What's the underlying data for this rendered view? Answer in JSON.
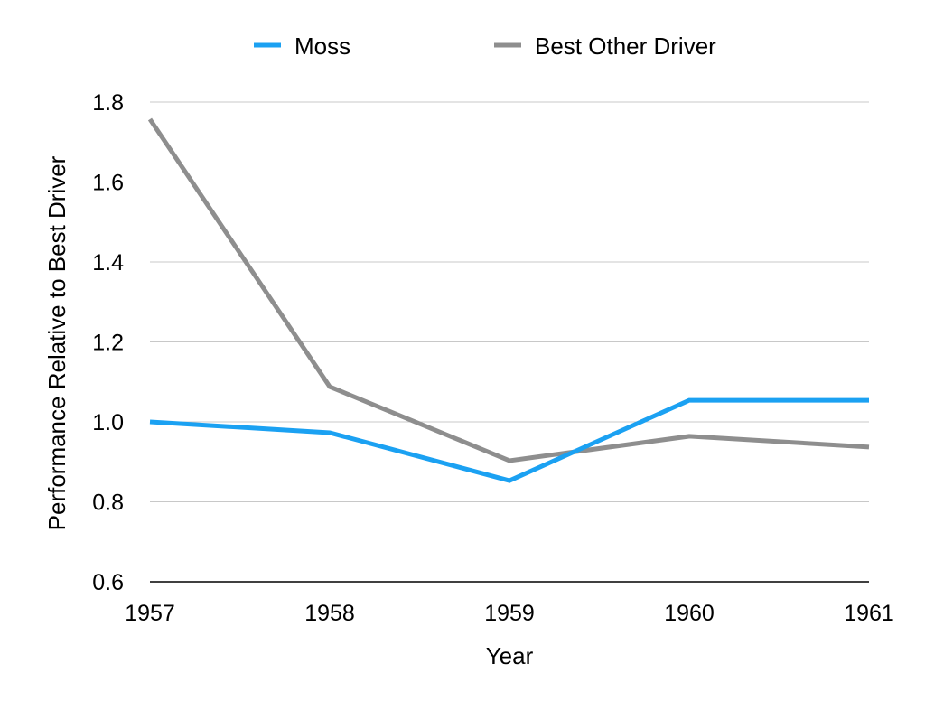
{
  "chart_data": {
    "type": "line",
    "title": "",
    "xlabel": "Year",
    "ylabel": "Performance Relative to Best Driver",
    "x": [
      "1957",
      "1958",
      "1959",
      "1960",
      "1961"
    ],
    "ylim": [
      0.6,
      1.8
    ],
    "yticks": [
      "0.6",
      "0.8",
      "1.0",
      "1.2",
      "1.4",
      "1.6",
      "1.8"
    ],
    "grid": true,
    "legend_position": "top",
    "series": [
      {
        "name": "Moss",
        "color": "#1BA1F2",
        "values": [
          1.0,
          0.973,
          0.853,
          1.054,
          1.054
        ]
      },
      {
        "name": "Best Other Driver",
        "color": "#8E8E8E",
        "values": [
          1.757,
          1.088,
          0.903,
          0.964,
          0.937
        ]
      }
    ]
  }
}
